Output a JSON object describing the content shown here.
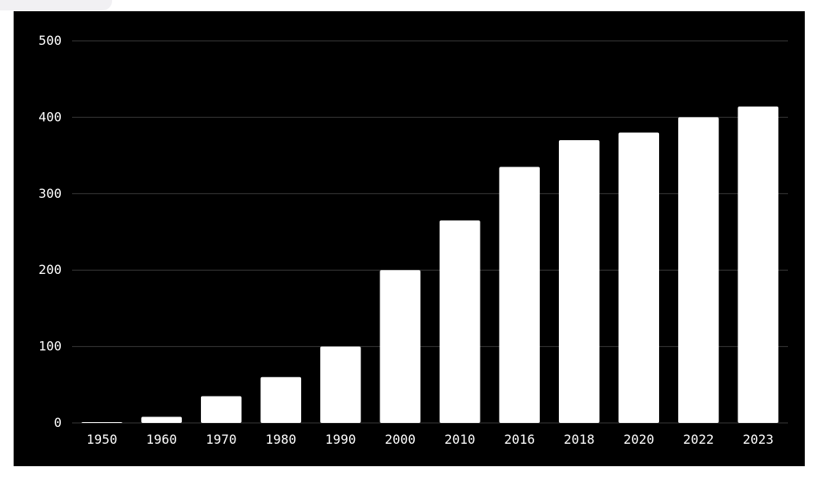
{
  "colors": {
    "panel_background": "#000000",
    "bar": "#ffffff",
    "gridline": "#3a3a3a",
    "text": "#ffffff"
  },
  "chart_data": {
    "type": "bar",
    "categories": [
      "1950",
      "1960",
      "1970",
      "1980",
      "1990",
      "2000",
      "2010",
      "2016",
      "2018",
      "2020",
      "2022",
      "2023"
    ],
    "values": [
      1,
      8,
      35,
      60,
      100,
      200,
      265,
      335,
      370,
      380,
      400,
      414
    ],
    "yticks": [
      0,
      100,
      200,
      300,
      400,
      500
    ],
    "ylim": [
      0,
      500
    ],
    "title": "",
    "xlabel": "",
    "ylabel": "",
    "grid": true,
    "legend": false
  }
}
